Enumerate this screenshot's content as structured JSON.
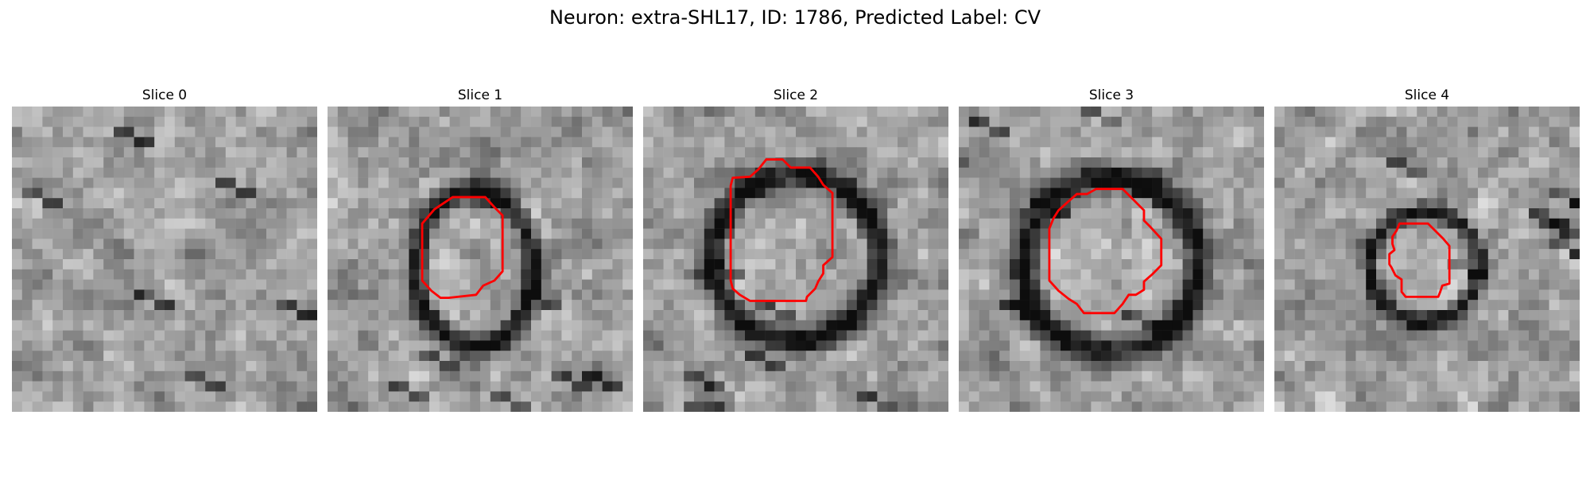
{
  "title": "Neuron: extra-SHL17, ID: 1786, Predicted Label: CV",
  "slices": [
    {
      "label": "Slice 0",
      "seed": 11,
      "darkRing": false,
      "contour": []
    },
    {
      "label": "Slice 1",
      "seed": 23,
      "darkRing": true,
      "ringCenter": [
        14.5,
        16
      ],
      "ringR": [
        5.8,
        7.6
      ],
      "contour": [
        [
          9.3,
          11.5
        ],
        [
          10.5,
          10.1
        ],
        [
          12.3,
          8.9
        ],
        [
          15.5,
          8.9
        ],
        [
          16.4,
          9.9
        ],
        [
          17.2,
          10.7
        ],
        [
          17.2,
          16.2
        ],
        [
          16.4,
          17.1
        ],
        [
          15.3,
          17.6
        ],
        [
          14.6,
          18.5
        ],
        [
          11.9,
          18.8
        ],
        [
          11.1,
          18.8
        ],
        [
          10.2,
          18.1
        ],
        [
          9.3,
          17.1
        ]
      ]
    },
    {
      "label": "Slice 2",
      "seed": 37,
      "darkRing": true,
      "ringCenter": [
        15,
        14.8
      ],
      "ringR": [
        8.2,
        8.2
      ],
      "contour": [
        [
          8.8,
          7.0
        ],
        [
          10.5,
          6.9
        ],
        [
          11.3,
          6.2
        ],
        [
          12.1,
          5.2
        ],
        [
          13.7,
          5.2
        ],
        [
          14.5,
          6.0
        ],
        [
          16.4,
          6.0
        ],
        [
          17.2,
          6.9
        ],
        [
          17.7,
          7.7
        ],
        [
          18.6,
          8.5
        ],
        [
          18.6,
          14.8
        ],
        [
          17.7,
          15.6
        ],
        [
          17.7,
          16.4
        ],
        [
          17.2,
          17.2
        ],
        [
          16.9,
          17.9
        ],
        [
          16.1,
          18.7
        ],
        [
          16.0,
          19.1
        ],
        [
          14.6,
          19.1
        ],
        [
          10.5,
          19.1
        ],
        [
          9.5,
          18.5
        ],
        [
          8.8,
          17.9
        ],
        [
          8.6,
          17.1
        ],
        [
          8.6,
          7.8
        ]
      ]
    },
    {
      "label": "Slice 3",
      "seed": 51,
      "darkRing": true,
      "ringCenter": [
        15,
        15.5
      ],
      "ringR": [
        8.6,
        8.6
      ],
      "contour": [
        [
          9.8,
          10.2
        ],
        [
          10.8,
          9.3
        ],
        [
          11.6,
          8.6
        ],
        [
          12.6,
          8.6
        ],
        [
          13.5,
          8.1
        ],
        [
          15.3,
          8.1
        ],
        [
          16.1,
          8.1
        ],
        [
          17.3,
          9.3
        ],
        [
          18.2,
          10.2
        ],
        [
          18.2,
          11.2
        ],
        [
          18.8,
          11.8
        ],
        [
          19.9,
          13.0
        ],
        [
          19.9,
          15.6
        ],
        [
          19.0,
          16.5
        ],
        [
          18.2,
          17.2
        ],
        [
          18.2,
          18.0
        ],
        [
          17.4,
          18.5
        ],
        [
          16.7,
          18.5
        ],
        [
          16.1,
          19.4
        ],
        [
          15.3,
          20.3
        ],
        [
          13.8,
          20.3
        ],
        [
          12.3,
          20.3
        ],
        [
          11.6,
          19.4
        ],
        [
          10.8,
          18.9
        ],
        [
          9.8,
          18.1
        ],
        [
          8.9,
          17.1
        ],
        [
          8.9,
          12.0
        ],
        [
          9.3,
          11.0
        ]
      ]
    },
    {
      "label": "Slice 4",
      "seed": 67,
      "darkRing": true,
      "ringCenter": [
        14.8,
        15.7
      ],
      "ringR": [
        5.4,
        5.4
      ],
      "contour": [
        [
          12.3,
          11.5
        ],
        [
          13.1,
          11.5
        ],
        [
          15.1,
          11.5
        ],
        [
          16.0,
          12.4
        ],
        [
          16.6,
          13.0
        ],
        [
          17.2,
          13.7
        ],
        [
          17.2,
          15.0
        ],
        [
          17.2,
          16.5
        ],
        [
          17.2,
          17.4
        ],
        [
          16.5,
          17.6
        ],
        [
          16.3,
          18.2
        ],
        [
          16.1,
          18.7
        ],
        [
          15.8,
          18.7
        ],
        [
          15.0,
          18.7
        ],
        [
          13.9,
          18.7
        ],
        [
          12.9,
          18.7
        ],
        [
          12.5,
          18.2
        ],
        [
          12.5,
          17.0
        ],
        [
          11.9,
          16.6
        ],
        [
          11.5,
          15.8
        ],
        [
          11.3,
          15.5
        ],
        [
          11.3,
          14.5
        ],
        [
          11.8,
          14.1
        ],
        [
          11.6,
          13.5
        ],
        [
          11.6,
          12.8
        ],
        [
          12.0,
          12.2
        ]
      ]
    }
  ]
}
